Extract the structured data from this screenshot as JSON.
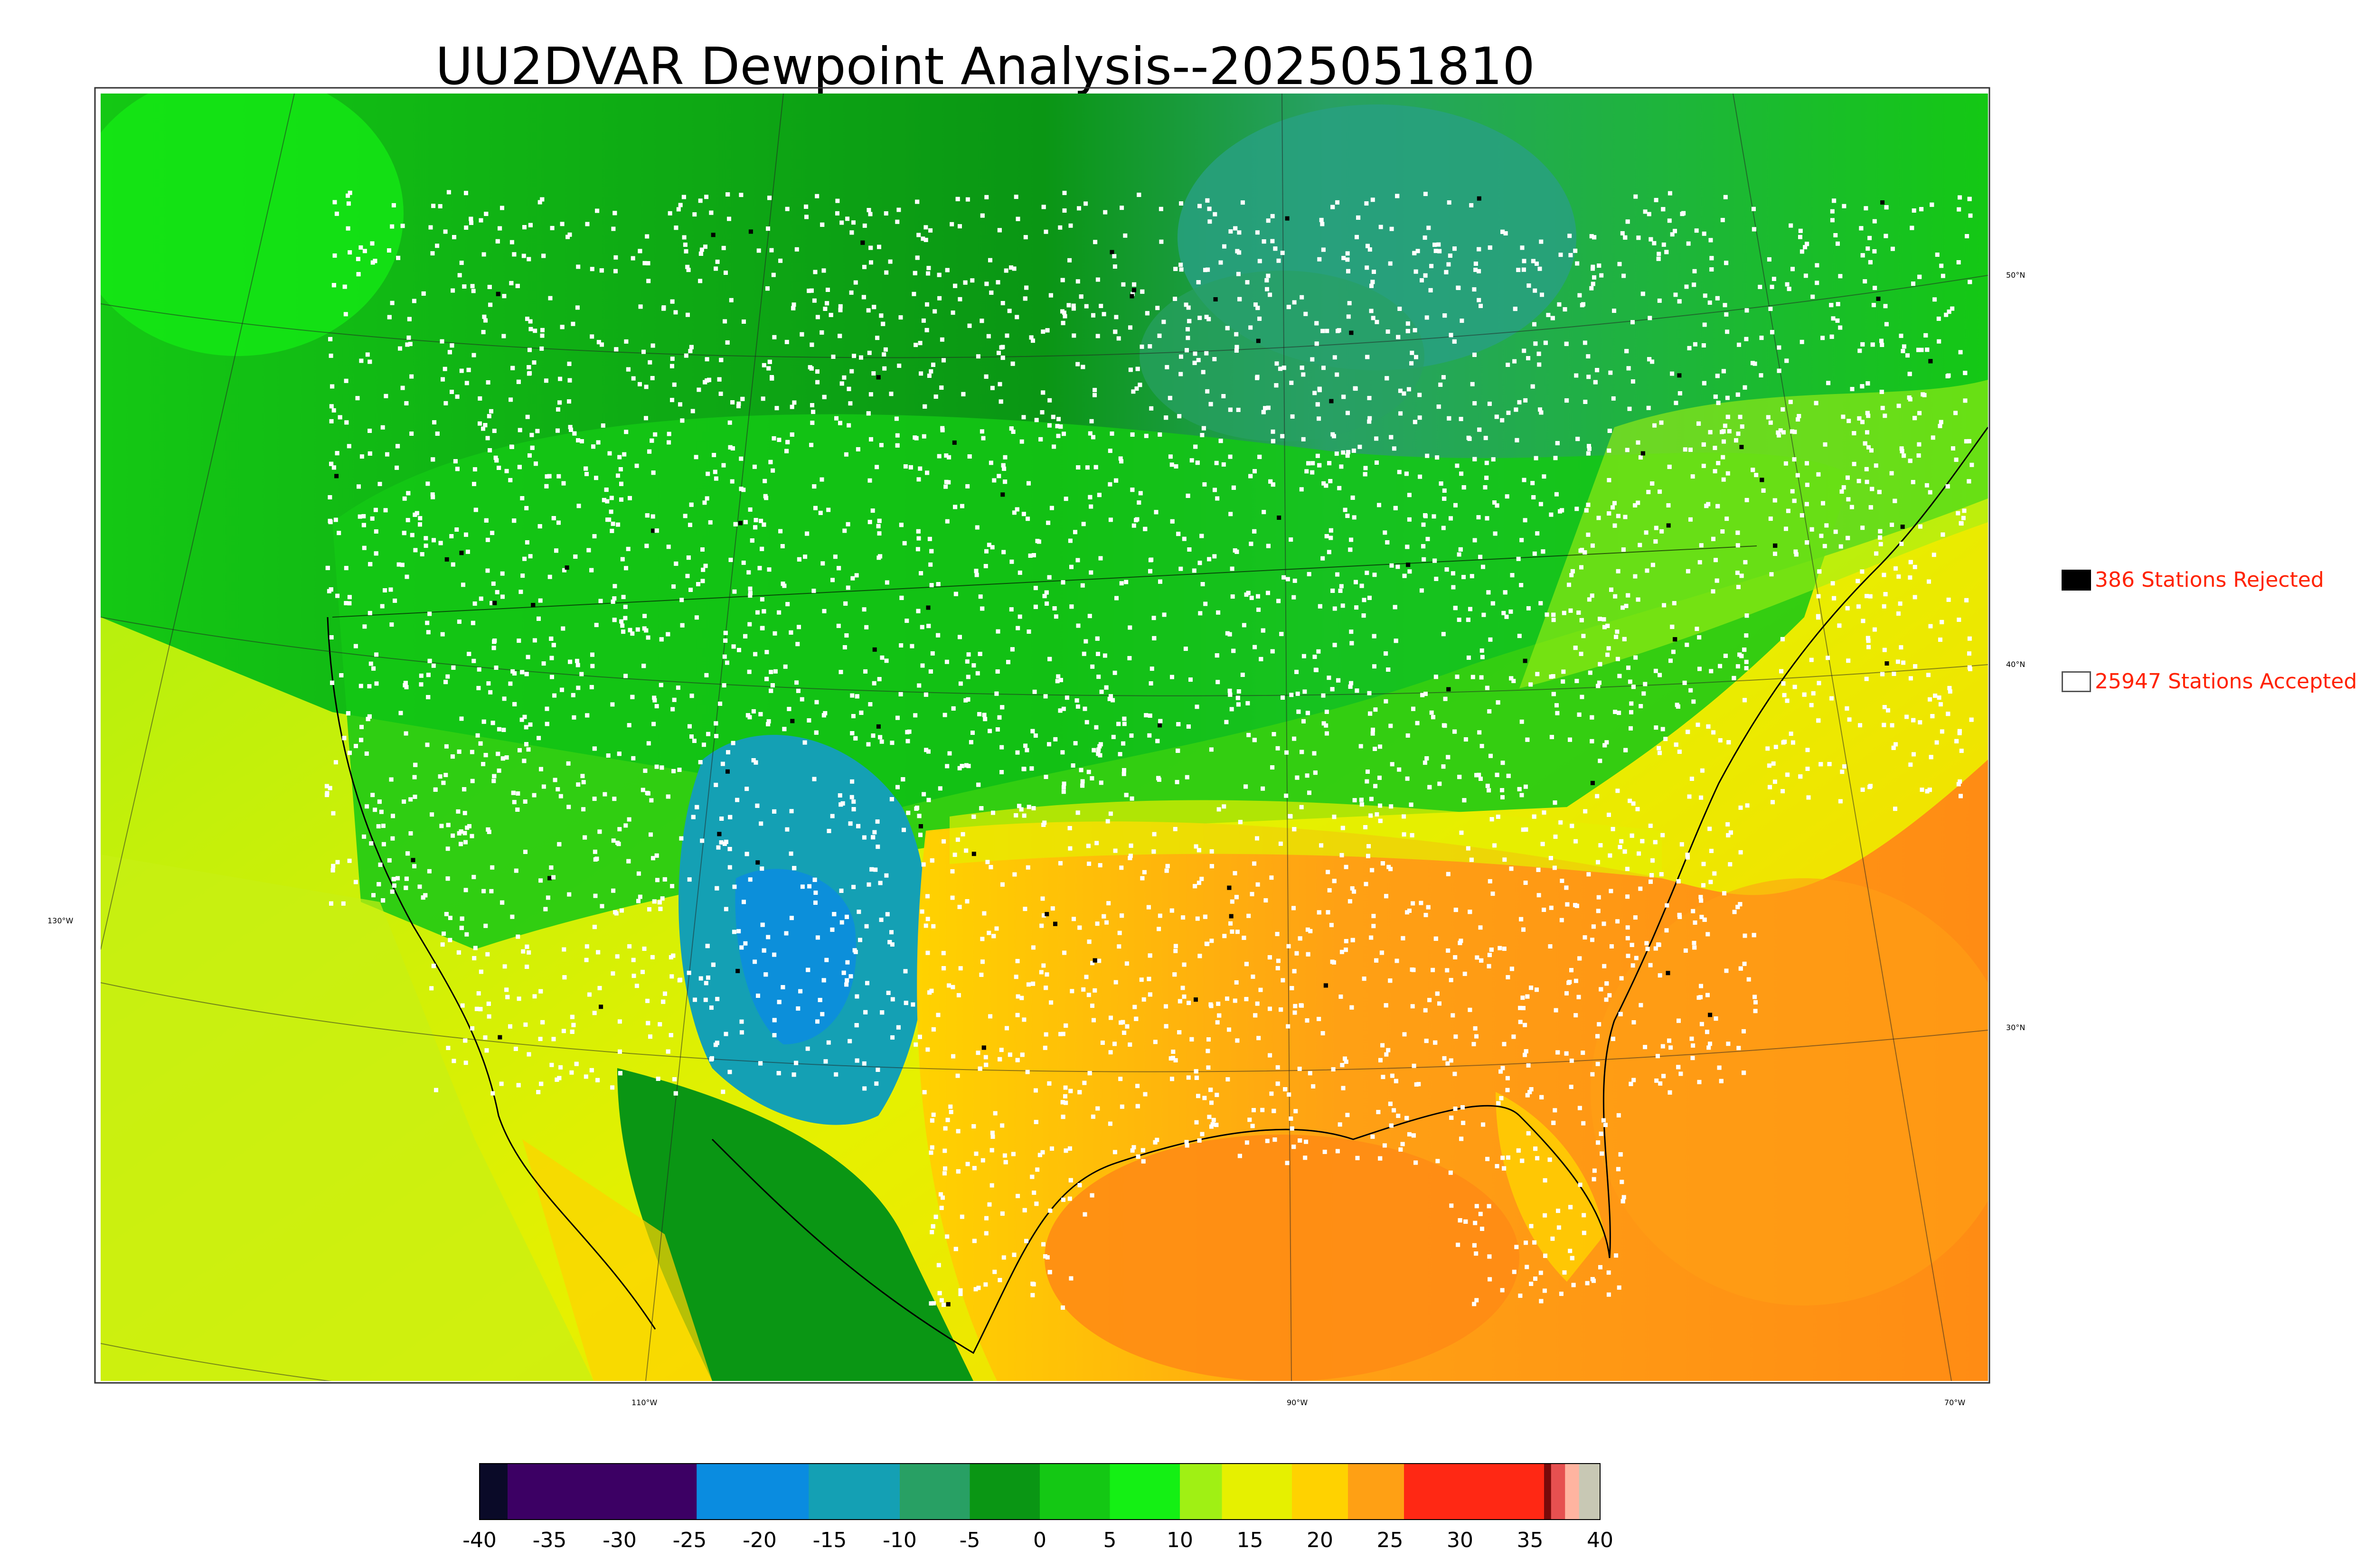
{
  "title": "UU2DVAR Dewpoint Analysis--2025051810",
  "legend": {
    "rejected": {
      "count": 386,
      "label": "386 Stations Rejected",
      "color": "#000000"
    },
    "accepted": {
      "count": 25947,
      "label": "25947 Stations Accepted",
      "color": "#ffffff"
    }
  },
  "longitude_labels": [
    "130°W",
    "110°W",
    "90°W",
    "70°W"
  ],
  "latitude_labels": [
    "50°N",
    "40°N",
    "30°N"
  ],
  "colorbar": {
    "min": -40,
    "max": 40,
    "ticks": [
      "-40",
      "-35",
      "-30",
      "-25",
      "-20",
      "-15",
      "-10",
      "-5",
      "0",
      "5",
      "10",
      "15",
      "20",
      "25",
      "30",
      "35",
      "40"
    ],
    "bands": [
      {
        "from": -40,
        "to": -38,
        "color": "#0a0a28"
      },
      {
        "from": -38,
        "to": -24.5,
        "color": "#3c0064"
      },
      {
        "from": -24.5,
        "to": -16.5,
        "color": "#0a8ce0"
      },
      {
        "from": -16.5,
        "to": -10,
        "color": "#14a0b4"
      },
      {
        "from": -10,
        "to": -5,
        "color": "#28a064"
      },
      {
        "from": -5,
        "to": 0,
        "color": "#0a9614"
      },
      {
        "from": 0,
        "to": 5,
        "color": "#14c814"
      },
      {
        "from": 5,
        "to": 10,
        "color": "#14f014"
      },
      {
        "from": 10,
        "to": 13,
        "color": "#a0f014"
      },
      {
        "from": 13,
        "to": 18,
        "color": "#e6f000"
      },
      {
        "from": 18,
        "to": 22,
        "color": "#ffd200"
      },
      {
        "from": 22,
        "to": 26,
        "color": "#ffa014"
      },
      {
        "from": 26,
        "to": 36,
        "color": "#ff2814"
      },
      {
        "from": 36,
        "to": 36.5,
        "color": "#780a0a"
      },
      {
        "from": 36.5,
        "to": 37.5,
        "color": "#e65050"
      },
      {
        "from": 37.5,
        "to": 38.5,
        "color": "#ffb4a0"
      },
      {
        "from": 38.5,
        "to": 40,
        "color": "#c8c8b4"
      }
    ]
  }
}
